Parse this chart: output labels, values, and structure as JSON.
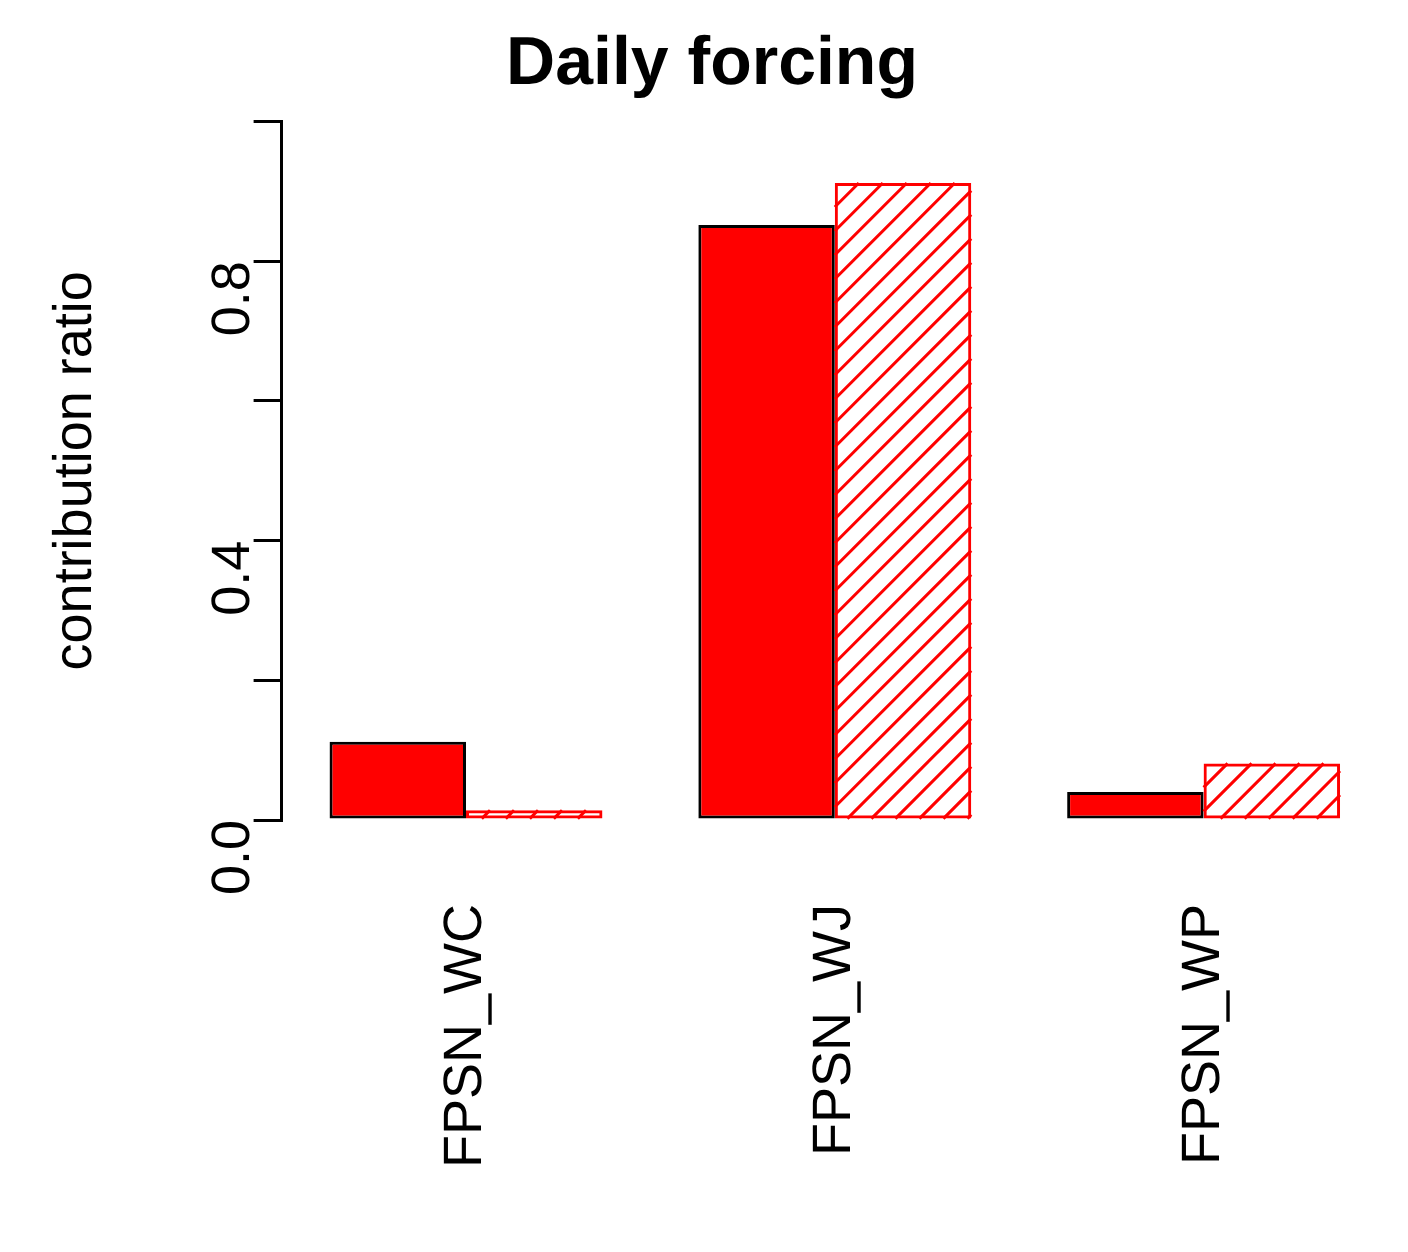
{
  "chart_data": {
    "type": "bar",
    "title": "Daily forcing",
    "ylabel": "contribution ratio",
    "categories": [
      "FPSN_WC",
      "FPSN_WJ",
      "FPSN_WP"
    ],
    "series": [
      {
        "color": "#ff0000",
        "values": [
          0.112,
          0.852,
          0.04
        ]
      },
      {
        "color": "#ff0000",
        "values": [
          0.014,
          0.912,
          0.081
        ]
      }
    ],
    "ylim": [
      0,
      1.0
    ],
    "yticks": [
      {
        "value": 0,
        "label": "0.0"
      },
      {
        "value": 0.2,
        "label": null
      },
      {
        "value": 0.4,
        "label": "0.4"
      },
      {
        "value": 0.6,
        "label": null
      },
      {
        "value": 0.8,
        "label": "0.8"
      },
      {
        "value": 1.0,
        "label": null
      }
    ],
    "grid": false,
    "legend": false
  }
}
